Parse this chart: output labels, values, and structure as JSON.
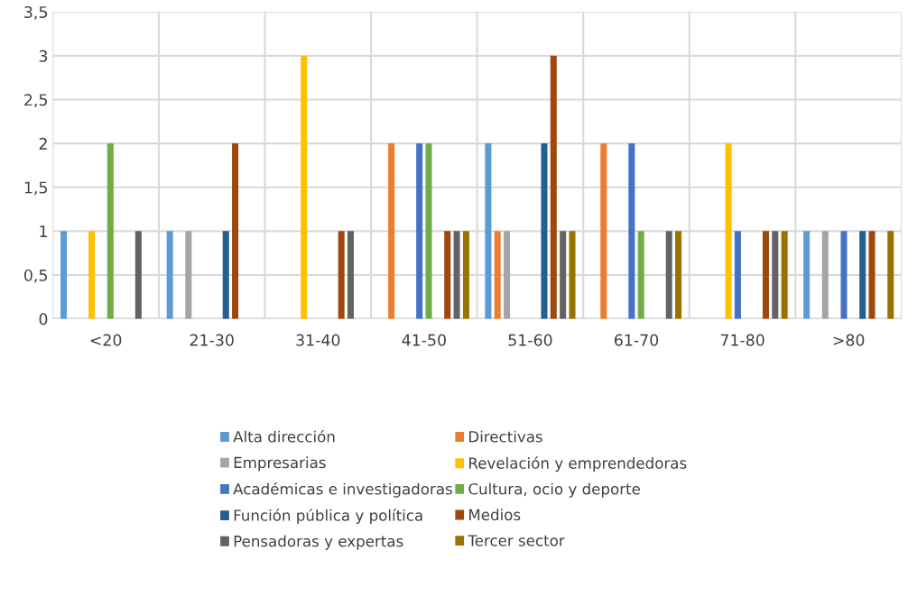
{
  "chart_data": {
    "type": "bar",
    "categories": [
      "<20",
      "21-30",
      "31-40",
      "41-50",
      "51-60",
      "61-70",
      "71-80",
      ">80"
    ],
    "series": [
      {
        "name": "Alta dirección",
        "color": "#5b9bd5",
        "values": [
          1,
          1,
          null,
          null,
          2,
          null,
          null,
          1
        ]
      },
      {
        "name": "Directivas",
        "color": "#ed7d31",
        "values": [
          null,
          null,
          null,
          2,
          1,
          2,
          null,
          null
        ]
      },
      {
        "name": "Empresarias",
        "color": "#a5a5a5",
        "values": [
          null,
          1,
          null,
          null,
          1,
          null,
          null,
          1
        ]
      },
      {
        "name": "Revelación y emprendedoras",
        "color": "#ffc000",
        "values": [
          1,
          null,
          3,
          null,
          null,
          null,
          2,
          null
        ]
      },
      {
        "name": "Académicas e investigadoras",
        "color": "#4472c4",
        "values": [
          null,
          null,
          null,
          2,
          null,
          2,
          1,
          1
        ]
      },
      {
        "name": "Cultura, ocio y deporte",
        "color": "#70ad47",
        "values": [
          2,
          null,
          null,
          2,
          null,
          1,
          null,
          null
        ]
      },
      {
        "name": "Función pública y política",
        "color": "#255e91",
        "values": [
          null,
          1,
          null,
          null,
          2,
          null,
          null,
          1
        ]
      },
      {
        "name": "Medios",
        "color": "#9e480e",
        "values": [
          null,
          2,
          1,
          1,
          3,
          null,
          1,
          1
        ]
      },
      {
        "name": "Pensadoras y expertas",
        "color": "#636363",
        "values": [
          1,
          null,
          1,
          1,
          1,
          1,
          1,
          null
        ]
      },
      {
        "name": "Tercer sector",
        "color": "#997300",
        "values": [
          null,
          null,
          null,
          1,
          1,
          1,
          1,
          1
        ]
      }
    ],
    "ylim": [
      0,
      3.5
    ],
    "yticks": [
      0,
      {
        "value": 0.5,
        "label": "0,5"
      },
      1,
      {
        "value": 1.5,
        "label": "1,5"
      },
      2,
      {
        "value": 2.5,
        "label": "2,5"
      },
      3,
      {
        "value": 3.5,
        "label": "3,5"
      }
    ],
    "grid": true,
    "legend": "bottom"
  }
}
